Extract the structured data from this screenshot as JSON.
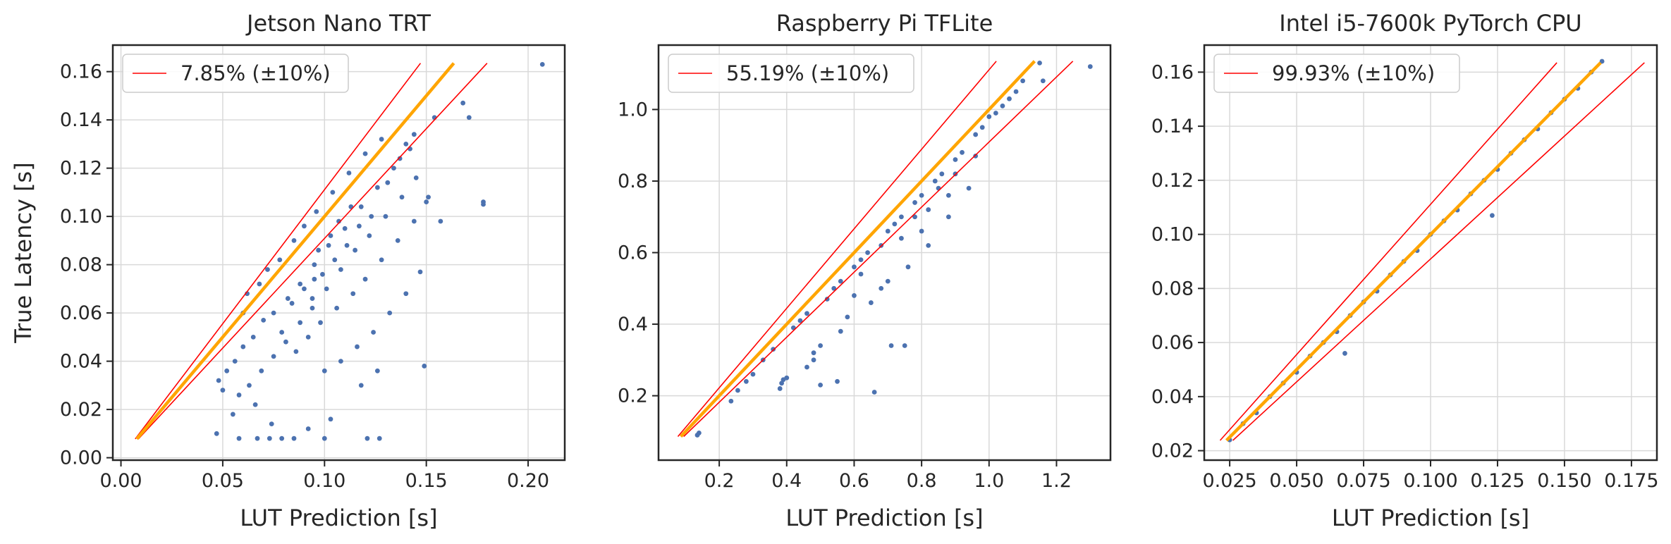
{
  "chart_data": [
    {
      "type": "scatter",
      "title": "Jetson Nano TRT",
      "xlabel": "LUT Prediction [s]",
      "ylabel": "True Latency [s]",
      "xlim": [
        -0.004,
        0.218
      ],
      "ylim": [
        -0.001,
        0.171
      ],
      "xticks": [
        0.0,
        0.05,
        0.1,
        0.15,
        0.2
      ],
      "xtick_labels": [
        "0.00",
        "0.05",
        "0.10",
        "0.15",
        "0.20"
      ],
      "yticks": [
        0.0,
        0.02,
        0.04,
        0.06,
        0.08,
        0.1,
        0.12,
        0.14,
        0.16
      ],
      "ytick_labels": [
        "0.00",
        "0.02",
        "0.04",
        "0.06",
        "0.08",
        "0.10",
        "0.12",
        "0.14",
        "0.16"
      ],
      "legend": "7.85% (±10%)",
      "legend_loc": "upper left",
      "grid": true,
      "diag_range": [
        0.0078,
        0.1635
      ],
      "tolerance": 0.1,
      "points": [
        [
          0.047,
          0.01
        ],
        [
          0.058,
          0.008
        ],
        [
          0.067,
          0.008
        ],
        [
          0.073,
          0.008
        ],
        [
          0.079,
          0.008
        ],
        [
          0.085,
          0.008
        ],
        [
          0.1,
          0.008
        ],
        [
          0.121,
          0.008
        ],
        [
          0.127,
          0.008
        ],
        [
          0.055,
          0.018
        ],
        [
          0.066,
          0.022
        ],
        [
          0.074,
          0.014
        ],
        [
          0.092,
          0.012
        ],
        [
          0.103,
          0.016
        ],
        [
          0.149,
          0.038
        ],
        [
          0.178,
          0.106
        ],
        [
          0.178,
          0.105
        ],
        [
          0.207,
          0.163
        ],
        [
          0.171,
          0.141
        ],
        [
          0.168,
          0.147
        ],
        [
          0.157,
          0.098
        ],
        [
          0.154,
          0.141
        ],
        [
          0.151,
          0.108
        ],
        [
          0.147,
          0.077
        ],
        [
          0.048,
          0.032
        ],
        [
          0.05,
          0.028
        ],
        [
          0.052,
          0.036
        ],
        [
          0.056,
          0.04
        ],
        [
          0.06,
          0.046
        ],
        [
          0.065,
          0.05
        ],
        [
          0.07,
          0.057
        ],
        [
          0.075,
          0.06
        ],
        [
          0.082,
          0.066
        ],
        [
          0.088,
          0.072
        ],
        [
          0.095,
          0.08
        ],
        [
          0.102,
          0.088
        ],
        [
          0.11,
          0.095
        ],
        [
          0.118,
          0.104
        ],
        [
          0.126,
          0.112
        ],
        [
          0.134,
          0.12
        ],
        [
          0.142,
          0.128
        ],
        [
          0.058,
          0.026
        ],
        [
          0.063,
          0.03
        ],
        [
          0.069,
          0.036
        ],
        [
          0.075,
          0.042
        ],
        [
          0.081,
          0.048
        ],
        [
          0.088,
          0.056
        ],
        [
          0.094,
          0.062
        ],
        [
          0.101,
          0.07
        ],
        [
          0.108,
          0.078
        ],
        [
          0.115,
          0.086
        ],
        [
          0.122,
          0.092
        ],
        [
          0.13,
          0.1
        ],
        [
          0.138,
          0.108
        ],
        [
          0.145,
          0.116
        ],
        [
          0.06,
          0.06
        ],
        [
          0.062,
          0.068
        ],
        [
          0.068,
          0.072
        ],
        [
          0.072,
          0.078
        ],
        [
          0.078,
          0.082
        ],
        [
          0.085,
          0.09
        ],
        [
          0.09,
          0.096
        ],
        [
          0.096,
          0.102
        ],
        [
          0.104,
          0.11
        ],
        [
          0.112,
          0.118
        ],
        [
          0.12,
          0.126
        ],
        [
          0.128,
          0.132
        ],
        [
          0.086,
          0.044
        ],
        [
          0.092,
          0.05
        ],
        [
          0.098,
          0.056
        ],
        [
          0.106,
          0.062
        ],
        [
          0.114,
          0.068
        ],
        [
          0.12,
          0.074
        ],
        [
          0.128,
          0.082
        ],
        [
          0.136,
          0.09
        ],
        [
          0.144,
          0.098
        ],
        [
          0.15,
          0.106
        ],
        [
          0.1,
          0.036
        ],
        [
          0.108,
          0.04
        ],
        [
          0.116,
          0.046
        ],
        [
          0.124,
          0.052
        ],
        [
          0.132,
          0.06
        ],
        [
          0.14,
          0.068
        ],
        [
          0.118,
          0.03
        ],
        [
          0.126,
          0.036
        ],
        [
          0.079,
          0.052
        ],
        [
          0.084,
          0.064
        ],
        [
          0.09,
          0.07
        ],
        [
          0.095,
          0.074
        ],
        [
          0.097,
          0.086
        ],
        [
          0.103,
          0.092
        ],
        [
          0.107,
          0.098
        ],
        [
          0.113,
          0.104
        ],
        [
          0.094,
          0.066
        ],
        [
          0.099,
          0.076
        ],
        [
          0.105,
          0.082
        ],
        [
          0.111,
          0.088
        ],
        [
          0.117,
          0.096
        ],
        [
          0.123,
          0.1
        ],
        [
          0.131,
          0.114
        ],
        [
          0.137,
          0.124
        ],
        [
          0.14,
          0.13
        ],
        [
          0.144,
          0.134
        ]
      ]
    },
    {
      "type": "scatter",
      "title": "Raspberry Pi TFLite",
      "xlabel": "LUT Prediction [s]",
      "ylabel": "",
      "xlim": [
        0.02,
        1.36
      ],
      "ylim": [
        0.02,
        1.18
      ],
      "xticks": [
        0.2,
        0.4,
        0.6,
        0.8,
        1.0,
        1.2
      ],
      "xtick_labels": [
        "0.2",
        "0.4",
        "0.6",
        "0.8",
        "1.0",
        "1.2"
      ],
      "yticks": [
        0.2,
        0.4,
        0.6,
        0.8,
        1.0
      ],
      "ytick_labels": [
        "0.2",
        "0.4",
        "0.6",
        "0.8",
        "1.0"
      ],
      "legend": "55.19% (±10%)",
      "legend_loc": "upper left",
      "grid": true,
      "diag_range": [
        0.086,
        1.135
      ],
      "tolerance": 0.1,
      "points": [
        [
          0.135,
          0.09
        ],
        [
          0.14,
          0.096
        ],
        [
          0.235,
          0.185
        ],
        [
          0.255,
          0.215
        ],
        [
          0.28,
          0.24
        ],
        [
          0.3,
          0.26
        ],
        [
          0.33,
          0.3
        ],
        [
          0.36,
          0.33
        ],
        [
          0.38,
          0.22
        ],
        [
          0.385,
          0.235
        ],
        [
          0.39,
          0.245
        ],
        [
          0.4,
          0.25
        ],
        [
          0.42,
          0.39
        ],
        [
          0.44,
          0.41
        ],
        [
          0.46,
          0.43
        ],
        [
          0.48,
          0.32
        ],
        [
          0.5,
          0.34
        ],
        [
          0.52,
          0.47
        ],
        [
          0.54,
          0.5
        ],
        [
          0.56,
          0.52
        ],
        [
          0.56,
          0.38
        ],
        [
          0.58,
          0.42
        ],
        [
          0.6,
          0.56
        ],
        [
          0.62,
          0.58
        ],
        [
          0.64,
          0.6
        ],
        [
          0.65,
          0.46
        ],
        [
          0.66,
          0.21
        ],
        [
          0.68,
          0.5
        ],
        [
          0.7,
          0.66
        ],
        [
          0.72,
          0.68
        ],
        [
          0.74,
          0.7
        ],
        [
          0.76,
          0.56
        ],
        [
          0.78,
          0.74
        ],
        [
          0.8,
          0.76
        ],
        [
          0.82,
          0.62
        ],
        [
          0.84,
          0.8
        ],
        [
          0.86,
          0.82
        ],
        [
          0.88,
          0.7
        ],
        [
          0.9,
          0.86
        ],
        [
          0.92,
          0.88
        ],
        [
          0.94,
          0.78
        ],
        [
          0.96,
          0.93
        ],
        [
          0.98,
          0.95
        ],
        [
          1.0,
          0.98
        ],
        [
          1.02,
          0.99
        ],
        [
          1.04,
          1.01
        ],
        [
          1.08,
          1.05
        ],
        [
          1.1,
          1.08
        ],
        [
          1.15,
          1.13
        ],
        [
          1.16,
          1.08
        ],
        [
          1.3,
          1.12
        ],
        [
          0.71,
          0.34
        ],
        [
          0.75,
          0.34
        ],
        [
          0.55,
          0.24
        ],
        [
          0.5,
          0.23
        ],
        [
          0.6,
          0.48
        ],
        [
          0.68,
          0.62
        ],
        [
          0.82,
          0.72
        ],
        [
          0.88,
          0.76
        ],
        [
          0.96,
          0.87
        ],
        [
          0.46,
          0.28
        ],
        [
          0.48,
          0.3
        ],
        [
          0.7,
          0.52
        ],
        [
          0.8,
          0.66
        ],
        [
          1.06,
          1.03
        ],
        [
          0.62,
          0.54
        ],
        [
          0.74,
          0.64
        ],
        [
          0.9,
          0.82
        ],
        [
          0.85,
          0.78
        ],
        [
          0.78,
          0.7
        ]
      ]
    },
    {
      "type": "scatter",
      "title": "Intel i5-7600k PyTorch CPU",
      "xlabel": "LUT Prediction [s]",
      "ylabel": "",
      "xlim": [
        0.0155,
        0.1845
      ],
      "ylim": [
        0.0165,
        0.17
      ],
      "xticks": [
        0.025,
        0.05,
        0.075,
        0.1,
        0.125,
        0.15,
        0.175
      ],
      "xtick_labels": [
        "0.025",
        "0.050",
        "0.075",
        "0.100",
        "0.125",
        "0.150",
        "0.175"
      ],
      "yticks": [
        0.02,
        0.04,
        0.06,
        0.08,
        0.1,
        0.12,
        0.14,
        0.16
      ],
      "ytick_labels": [
        "0.02",
        "0.04",
        "0.06",
        "0.08",
        "0.10",
        "0.12",
        "0.14",
        "0.16"
      ],
      "legend": "99.93% (±10%)",
      "legend_loc": "upper left",
      "grid": true,
      "diag_range": [
        0.0238,
        0.1635
      ],
      "tolerance": 0.1,
      "points": [
        [
          0.025,
          0.024
        ],
        [
          0.03,
          0.03
        ],
        [
          0.035,
          0.034
        ],
        [
          0.04,
          0.04
        ],
        [
          0.045,
          0.045
        ],
        [
          0.05,
          0.049
        ],
        [
          0.055,
          0.055
        ],
        [
          0.06,
          0.06
        ],
        [
          0.065,
          0.064
        ],
        [
          0.068,
          0.056
        ],
        [
          0.07,
          0.07
        ],
        [
          0.075,
          0.075
        ],
        [
          0.08,
          0.079
        ],
        [
          0.085,
          0.085
        ],
        [
          0.09,
          0.09
        ],
        [
          0.095,
          0.094
        ],
        [
          0.1,
          0.1
        ],
        [
          0.105,
          0.105
        ],
        [
          0.11,
          0.109
        ],
        [
          0.115,
          0.115
        ],
        [
          0.12,
          0.12
        ],
        [
          0.123,
          0.107
        ],
        [
          0.125,
          0.124
        ],
        [
          0.13,
          0.13
        ],
        [
          0.135,
          0.135
        ],
        [
          0.14,
          0.139
        ],
        [
          0.145,
          0.145
        ],
        [
          0.15,
          0.15
        ],
        [
          0.155,
          0.154
        ],
        [
          0.16,
          0.16
        ],
        [
          0.164,
          0.164
        ]
      ]
    }
  ]
}
